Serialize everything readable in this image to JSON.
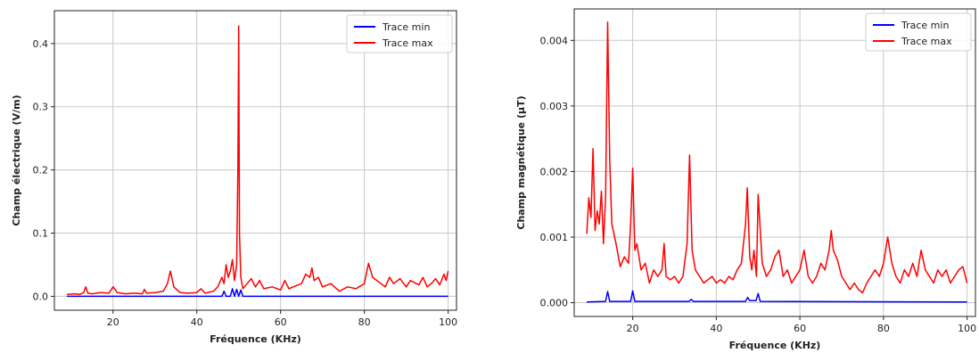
{
  "chart_data": [
    {
      "type": "line",
      "xlabel": "Fréquence (KHz)",
      "ylabel": "Champ électrique (V/m)",
      "xlim": [
        6,
        102
      ],
      "ylim": [
        -0.022,
        0.452
      ],
      "xticks": [
        20,
        40,
        60,
        80,
        100
      ],
      "yticks": [
        0.0,
        0.1,
        0.2,
        0.3,
        0.4
      ],
      "ytick_labels": [
        "0.0",
        "0.1",
        "0.2",
        "0.3",
        "0.4"
      ],
      "grid": true,
      "legend_position": "top-right",
      "series": [
        {
          "name": "Trace min",
          "color": "#0000ff",
          "x": [
            9,
            45,
            46,
            46.5,
            47,
            48,
            48.5,
            49,
            49.5,
            50,
            50.5,
            51,
            100
          ],
          "y": [
            0.0,
            0.0,
            0.0,
            0.008,
            0.0,
            0.0,
            0.012,
            0.0,
            0.011,
            0.0,
            0.01,
            0.0,
            0.0
          ]
        },
        {
          "name": "Trace max",
          "color": "#ff0000",
          "x": [
            9,
            11,
            12,
            13,
            13.5,
            14,
            15,
            17,
            19,
            20,
            21,
            23,
            25,
            27,
            27.5,
            28,
            30,
            32,
            33,
            33.7,
            34.5,
            36,
            38,
            40,
            41,
            42,
            44,
            45,
            46,
            46.5,
            47,
            47.5,
            48,
            48.5,
            49,
            49.5,
            49.8,
            50,
            50.2,
            50.5,
            51,
            52,
            53,
            54,
            55,
            56,
            58,
            60,
            61,
            62,
            63,
            65,
            66,
            67,
            67.5,
            68,
            69,
            70,
            72,
            74,
            76,
            78,
            80,
            81,
            82,
            83,
            85,
            86,
            87,
            88.5,
            90,
            91,
            93,
            94,
            95,
            96,
            97,
            98,
            99,
            99.5,
            100
          ],
          "y": [
            0.003,
            0.004,
            0.003,
            0.006,
            0.015,
            0.005,
            0.004,
            0.006,
            0.005,
            0.015,
            0.006,
            0.004,
            0.005,
            0.004,
            0.011,
            0.005,
            0.006,
            0.008,
            0.02,
            0.04,
            0.015,
            0.006,
            0.005,
            0.006,
            0.012,
            0.005,
            0.008,
            0.015,
            0.03,
            0.02,
            0.05,
            0.03,
            0.04,
            0.058,
            0.025,
            0.05,
            0.2,
            0.428,
            0.1,
            0.03,
            0.012,
            0.02,
            0.028,
            0.015,
            0.025,
            0.012,
            0.015,
            0.01,
            0.025,
            0.012,
            0.015,
            0.02,
            0.035,
            0.03,
            0.045,
            0.025,
            0.03,
            0.015,
            0.02,
            0.008,
            0.015,
            0.012,
            0.02,
            0.052,
            0.03,
            0.025,
            0.015,
            0.03,
            0.02,
            0.028,
            0.015,
            0.025,
            0.018,
            0.03,
            0.015,
            0.02,
            0.028,
            0.018,
            0.035,
            0.025,
            0.04
          ]
        }
      ]
    },
    {
      "type": "line",
      "xlabel": "Fréquence (KHz)",
      "ylabel": "Champ magnétique (µT)",
      "xlim": [
        6,
        102
      ],
      "ylim": [
        -0.00021,
        0.00448
      ],
      "xticks": [
        20,
        40,
        60,
        80,
        100
      ],
      "yticks": [
        0.0,
        0.001,
        0.002,
        0.003,
        0.004
      ],
      "ytick_labels": [
        "0.000",
        "0.001",
        "0.002",
        "0.003",
        "0.004"
      ],
      "grid": true,
      "legend_position": "top-right",
      "series": [
        {
          "name": "Trace min",
          "color": "#0000ff",
          "x": [
            9,
            13.5,
            14,
            14.5,
            19.5,
            20,
            20.5,
            33.5,
            34,
            34.5,
            47,
            47.5,
            48,
            49.5,
            50,
            50.5,
            100
          ],
          "y": [
            1e-05,
            2e-05,
            0.00017,
            2e-05,
            2e-05,
            0.00018,
            2e-05,
            2e-05,
            5e-05,
            2e-05,
            2e-05,
            8e-05,
            3e-05,
            3e-05,
            0.00014,
            2e-05,
            1e-05
          ]
        },
        {
          "name": "Trace max",
          "color": "#ff0000",
          "x": [
            9,
            9.5,
            10,
            10.5,
            11,
            11.5,
            12,
            12.5,
            13,
            13.5,
            14,
            14.5,
            15,
            16,
            17,
            18,
            19,
            19.5,
            20,
            20.5,
            21,
            22,
            23,
            24,
            25,
            26,
            27,
            27.5,
            28,
            29,
            30,
            31,
            32,
            33,
            33.6,
            34.2,
            35,
            36,
            37,
            38,
            39,
            40,
            41,
            42,
            43,
            44,
            45,
            46,
            47,
            47.4,
            48,
            48.5,
            49,
            49.6,
            50,
            51,
            52,
            53,
            54,
            55,
            56,
            57,
            58,
            59,
            60,
            61,
            62,
            63,
            64,
            65,
            66,
            67,
            67.5,
            68,
            69,
            70,
            71,
            72,
            73,
            74,
            75,
            76,
            77,
            78,
            79,
            80,
            81,
            82,
            83,
            84,
            85,
            86,
            87,
            88,
            89,
            90,
            91,
            92,
            93,
            94,
            95,
            96,
            97,
            98,
            99,
            100
          ],
          "y": [
            0.00105,
            0.0016,
            0.0013,
            0.00235,
            0.0011,
            0.0014,
            0.0012,
            0.0017,
            0.0009,
            0.0016,
            0.00428,
            0.0022,
            0.0012,
            0.0009,
            0.00055,
            0.0007,
            0.0006,
            0.0012,
            0.00205,
            0.0008,
            0.0009,
            0.0005,
            0.0006,
            0.0003,
            0.0005,
            0.0004,
            0.0005,
            0.0009,
            0.0004,
            0.00035,
            0.0004,
            0.0003,
            0.0004,
            0.0009,
            0.00225,
            0.0008,
            0.0005,
            0.0004,
            0.0003,
            0.00035,
            0.0004,
            0.0003,
            0.00035,
            0.0003,
            0.0004,
            0.00035,
            0.0005,
            0.0006,
            0.0012,
            0.00175,
            0.0007,
            0.0005,
            0.0008,
            0.0004,
            0.00165,
            0.0006,
            0.0004,
            0.0005,
            0.0007,
            0.0008,
            0.0004,
            0.0005,
            0.0003,
            0.0004,
            0.0005,
            0.0008,
            0.0004,
            0.0003,
            0.0004,
            0.0006,
            0.0005,
            0.0008,
            0.0011,
            0.0008,
            0.00065,
            0.0004,
            0.0003,
            0.0002,
            0.0003,
            0.0002,
            0.00015,
            0.0003,
            0.0004,
            0.0005,
            0.0004,
            0.0006,
            0.001,
            0.0006,
            0.0004,
            0.0003,
            0.0005,
            0.0004,
            0.0006,
            0.0004,
            0.0008,
            0.0005,
            0.0004,
            0.0003,
            0.0005,
            0.0004,
            0.0005,
            0.0003,
            0.0004,
            0.0005,
            0.00055,
            0.0003
          ]
        }
      ]
    }
  ]
}
